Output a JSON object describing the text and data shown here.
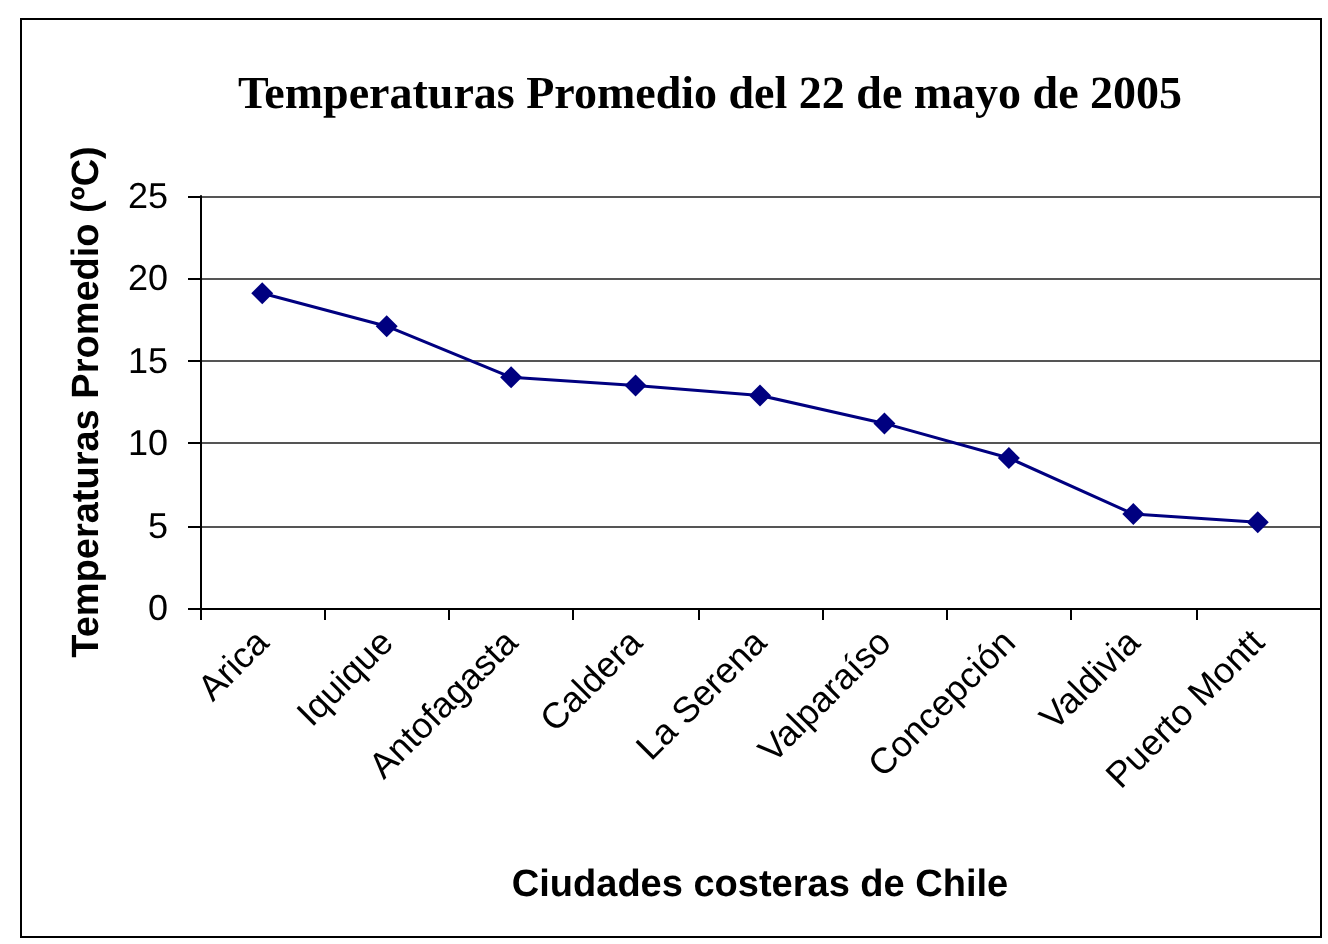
{
  "chart_data": {
    "type": "line",
    "title": "Temperaturas Promedio del 22 de mayo de 2005",
    "xlabel": "Ciudades costeras de Chile",
    "ylabel": "Temperaturas Promedio (ºC)",
    "categories": [
      "Arica",
      "Iquique",
      "Antofagasta",
      "Caldera",
      "La Serena",
      "Valparaíso",
      "Concepción",
      "Valdivia",
      "Puerto Montt"
    ],
    "series": [
      {
        "color": "#000080",
        "values": [
          19.1,
          17.1,
          14.0,
          13.5,
          12.9,
          11.2,
          9.1,
          5.7,
          5.2
        ]
      }
    ],
    "ylim": [
      0,
      25
    ],
    "yticks": [
      0,
      5,
      10,
      15,
      20,
      25
    ],
    "grid": "y",
    "marker": "diamond",
    "line_style": "solid"
  }
}
